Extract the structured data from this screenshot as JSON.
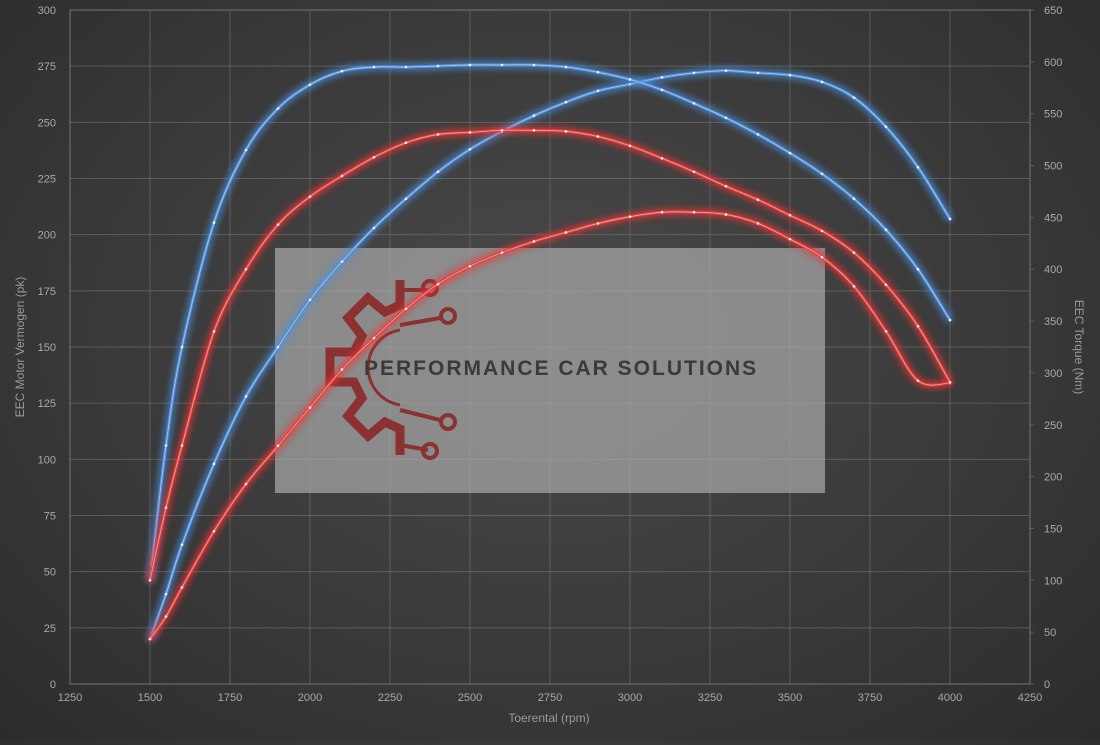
{
  "chart_data": {
    "type": "line",
    "xlabel": "Toerental (rpm)",
    "ylabel_left": "EEC Motor Vermogen (pk)",
    "ylabel_right": "EEC Torque (Nm)",
    "xlim": [
      1250,
      4250
    ],
    "ylim_left": [
      0,
      300
    ],
    "ylim_right": [
      0,
      650
    ],
    "x_ticks": [
      1250,
      1500,
      1750,
      2000,
      2250,
      2500,
      2750,
      3000,
      3250,
      3500,
      3750,
      4000,
      4250
    ],
    "y_ticks_left": [
      0,
      25,
      50,
      75,
      100,
      125,
      150,
      175,
      200,
      225,
      250,
      275,
      300
    ],
    "y_ticks_right": [
      0,
      50,
      100,
      150,
      200,
      250,
      300,
      350,
      400,
      450,
      500,
      550,
      600,
      650
    ],
    "grid": true,
    "legend": "none",
    "series": [
      {
        "axis": "left",
        "color": "#4f8fdc",
        "x": [
          1500,
          1550,
          1600,
          1700,
          1800,
          1900,
          2000,
          2100,
          2200,
          2300,
          2400,
          2500,
          2600,
          2700,
          2800,
          2900,
          3000,
          3100,
          3200,
          3300,
          3400,
          3500,
          3600,
          3700,
          3800,
          3900,
          4000
        ],
        "values": [
          20,
          40,
          62,
          98,
          128,
          150,
          171,
          188,
          203,
          216,
          228,
          238,
          246,
          253,
          259,
          264,
          267,
          270,
          272,
          273,
          272,
          271,
          268,
          261,
          248,
          230,
          207
        ]
      },
      {
        "axis": "right",
        "color": "#4f8fdc",
        "x": [
          1500,
          1550,
          1600,
          1700,
          1800,
          1900,
          2000,
          2100,
          2200,
          2300,
          2400,
          2500,
          2600,
          2700,
          2800,
          2900,
          3000,
          3100,
          3200,
          3300,
          3400,
          3500,
          3600,
          3700,
          3800,
          3900,
          4000
        ],
        "values": [
          100,
          230,
          325,
          445,
          515,
          555,
          578,
          591,
          595,
          595,
          596,
          597,
          597,
          597,
          595,
          590,
          583,
          573,
          560,
          546,
          530,
          512,
          492,
          468,
          438,
          400,
          351
        ]
      },
      {
        "axis": "left",
        "color": "#e83a3a",
        "x": [
          1500,
          1550,
          1600,
          1700,
          1800,
          1900,
          2000,
          2100,
          2200,
          2300,
          2400,
          2500,
          2600,
          2700,
          2800,
          2900,
          3000,
          3100,
          3200,
          3300,
          3400,
          3500,
          3600,
          3700,
          3800,
          3900,
          4000
        ],
        "values": [
          20,
          30,
          43,
          68,
          89,
          106,
          123,
          140,
          154,
          167,
          178,
          186,
          192,
          197,
          201,
          205,
          208,
          210,
          210,
          209,
          205,
          198,
          190,
          177,
          157,
          135,
          134
        ]
      },
      {
        "axis": "right",
        "color": "#e83a3a",
        "x": [
          1500,
          1550,
          1600,
          1700,
          1800,
          1900,
          2000,
          2100,
          2200,
          2300,
          2400,
          2500,
          2600,
          2700,
          2800,
          2900,
          3000,
          3100,
          3200,
          3300,
          3400,
          3500,
          3600,
          3700,
          3800,
          3900,
          4000
        ],
        "values": [
          100,
          170,
          230,
          340,
          400,
          443,
          470,
          490,
          508,
          522,
          530,
          532,
          534,
          534,
          533,
          528,
          519,
          507,
          494,
          480,
          467,
          452,
          437,
          416,
          385,
          345,
          291
        ]
      }
    ]
  },
  "watermark": {
    "text": "PERFORMANCE CAR SOLUTIONS",
    "logo_color": "#8b2222",
    "box_color": "#a8a8a8"
  }
}
